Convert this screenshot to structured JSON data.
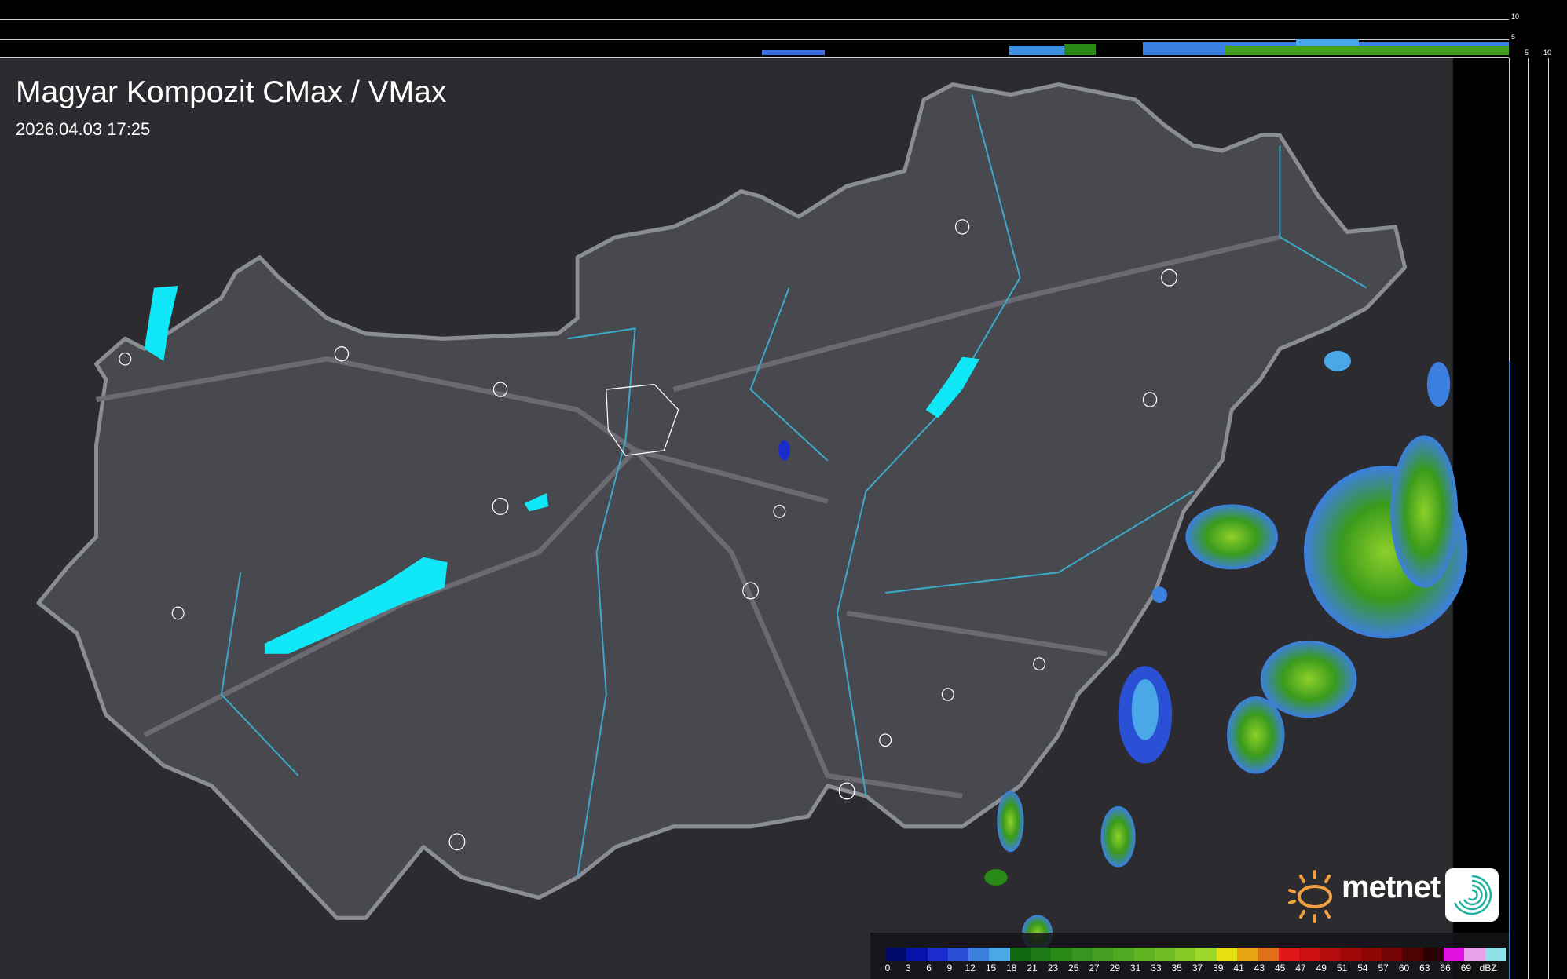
{
  "header": {
    "title": "Magyar Kompozit CMax / VMax",
    "timestamp": "2026.04.03 17:25"
  },
  "profile_axes": {
    "top_ticks": [
      "10",
      "5"
    ],
    "right_ticks": [
      "5",
      "10"
    ]
  },
  "legend": {
    "unit": "dBZ",
    "labels": [
      "0",
      "3",
      "6",
      "9",
      "12",
      "15",
      "18",
      "21",
      "23",
      "25",
      "27",
      "29",
      "31",
      "33",
      "35",
      "37",
      "39",
      "41",
      "43",
      "45",
      "47",
      "49",
      "51",
      "54",
      "57",
      "60",
      "63",
      "66",
      "69"
    ],
    "colors": [
      "#020a6a",
      "#0612a8",
      "#1a2ccc",
      "#2a50d6",
      "#3c80e0",
      "#4aa8e8",
      "#12680f",
      "#1e7a14",
      "#2a8a18",
      "#389620",
      "#45a021",
      "#52aa22",
      "#60b424",
      "#70be26",
      "#86ca28",
      "#9ed82a",
      "#e6e010",
      "#e6a412",
      "#e07018",
      "#e01818",
      "#cc1010",
      "#b40c0c",
      "#a00808",
      "#8c0606",
      "#740404",
      "#4e0202",
      "#2c0000",
      "#e010e0",
      "#e8a0e8",
      "#90e0e8"
    ]
  },
  "brand": {
    "logo_text": "metnet",
    "sun_color": "#f0a040",
    "icon_color": "#20b0a0"
  },
  "map_colors": {
    "background": "#2c2c30",
    "country_fill": "#4a4a52",
    "border": "#8a8e94",
    "rivers": "#3aaac8",
    "lakes": "#10e8f8",
    "towns": "#ffffff"
  }
}
